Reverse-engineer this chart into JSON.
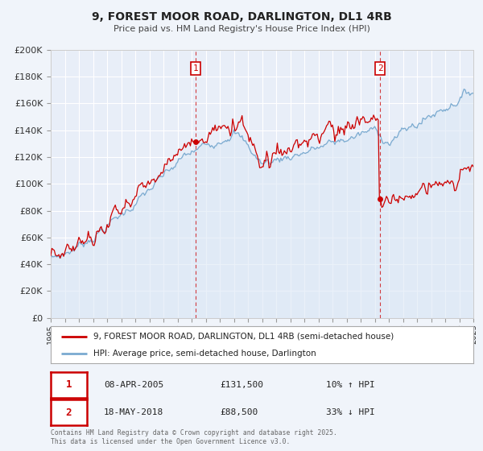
{
  "title": "9, FOREST MOOR ROAD, DARLINGTON, DL1 4RB",
  "subtitle": "Price paid vs. HM Land Registry's House Price Index (HPI)",
  "bg_color": "#f0f4fa",
  "plot_bg_color": "#e8eef8",
  "grid_color": "#ffffff",
  "red_line_color": "#cc0000",
  "blue_line_color": "#7aaad0",
  "blue_fill_color": "#dce8f5",
  "sale1_date": "08-APR-2005",
  "sale1_price": 131500,
  "sale1_year": 2005.27,
  "sale1_hpi_text": "10% ↑ HPI",
  "sale2_date": "18-MAY-2018",
  "sale2_price": 88500,
  "sale2_year": 2018.38,
  "sale2_hpi_text": "33% ↓ HPI",
  "legend_property": "9, FOREST MOOR ROAD, DARLINGTON, DL1 4RB (semi-detached house)",
  "legend_hpi": "HPI: Average price, semi-detached house, Darlington",
  "footer": "Contains HM Land Registry data © Crown copyright and database right 2025.\nThis data is licensed under the Open Government Licence v3.0.",
  "ylim": [
    0,
    200000
  ],
  "ytick_step": 20000,
  "xmin": 1995,
  "xmax": 2025
}
